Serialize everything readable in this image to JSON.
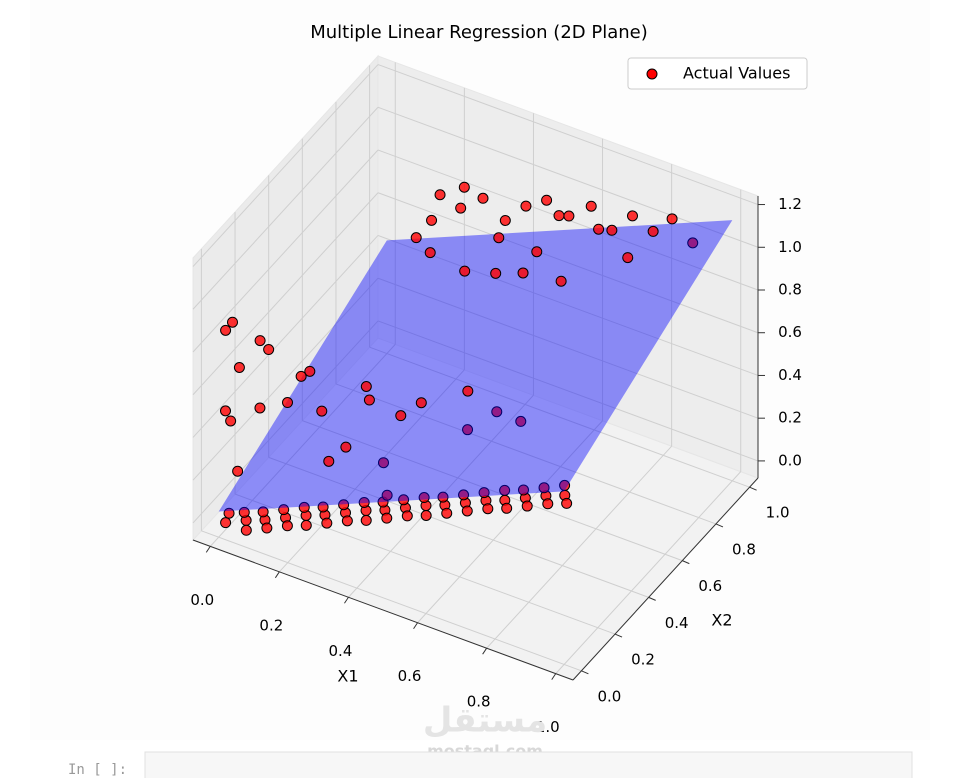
{
  "chart_data": {
    "type": "scatter3d",
    "title": "Multiple Linear Regression (2D Plane)",
    "xlabel": "X1",
    "ylabel": "X2",
    "xlim": [
      -0.05,
      1.05
    ],
    "ylim": [
      -0.05,
      1.05
    ],
    "zlim": [
      -0.08,
      1.24
    ],
    "xticks": [
      {
        "value": 0,
        "label": "0.0"
      },
      {
        "value": 0.2,
        "label": "0.2"
      },
      {
        "value": 0.4,
        "label": "0.4"
      },
      {
        "value": 0.6,
        "label": "0.6"
      },
      {
        "value": 0.8,
        "label": "0.8"
      },
      {
        "value": 1,
        "label": "1.0"
      }
    ],
    "yticks": [
      {
        "value": 0,
        "label": "0.0"
      },
      {
        "value": 0.2,
        "label": "0.2"
      },
      {
        "value": 0.4,
        "label": "0.4"
      },
      {
        "value": 0.6,
        "label": "0.6"
      },
      {
        "value": 0.8,
        "label": "0.8"
      },
      {
        "value": 1,
        "label": "1.0"
      }
    ],
    "zticks": [
      {
        "value": 0,
        "label": "0.0"
      },
      {
        "value": 0.2,
        "label": "0.2"
      },
      {
        "value": 0.4,
        "label": "0.4"
      },
      {
        "value": 0.6,
        "label": "0.6"
      },
      {
        "value": 0.8,
        "label": "0.8"
      },
      {
        "value": 1,
        "label": "1.0"
      },
      {
        "value": 1.2,
        "label": "1.2"
      }
    ],
    "grid": true,
    "legend": "upper right",
    "plane": {
      "intercept": 0.04,
      "coefficients": [
        0.69,
        0.41
      ],
      "color": "#0000ff"
    },
    "series": [
      {
        "name": "Actual Values",
        "color": "#ff0000",
        "x1": [
          0.02,
          0.06,
          0.1,
          0.14,
          0.18,
          0.22,
          0.26,
          0.3,
          0.34,
          0.38,
          0.42,
          0.46,
          0.5,
          0.54,
          0.58,
          0.62,
          0.66,
          0.7,
          0.04,
          0.08,
          0.12,
          0.16,
          0.2,
          0.24,
          0.28,
          0.32,
          0.36,
          0.4,
          0.44,
          0.48,
          0.52,
          0.56,
          0.6,
          0.64,
          0.68,
          0.08,
          0.12,
          0.16,
          0.2,
          0.24,
          0.28,
          0.32,
          0.36,
          0.4,
          0.44,
          0.48,
          0.52,
          0.56,
          0.6,
          0.64,
          0.68,
          0.72,
          0.04,
          0.02,
          0.115,
          0.13,
          0.06,
          0.01,
          0.02,
          0.1,
          0.19,
          0.22,
          0.17,
          0.24,
          0.27,
          0.3,
          0.37,
          0.42,
          0.58,
          0.67,
          0.55,
          0.46,
          0.33,
          0.3,
          0.62,
          0.4,
          0.05,
          0.03,
          0.29,
          0.3,
          0.27,
          0.35,
          0.4,
          0.45,
          0.5,
          0.55,
          0.6,
          0.65,
          0.7,
          0.75,
          0.8,
          0.85,
          0.9,
          0.67,
          0.5,
          0.42,
          0.33,
          0.58,
          0.72,
          0.62,
          0.38,
          0.55,
          0.78,
          0.47
        ],
        "x2": [
          0.0,
          0.04,
          0.07,
          0.11,
          0.15,
          0.18,
          0.22,
          0.26,
          0.29,
          0.33,
          0.37,
          0.4,
          0.44,
          0.48,
          0.51,
          0.55,
          0.59,
          0.62,
          0.07,
          0.1,
          0.14,
          0.18,
          0.21,
          0.25,
          0.29,
          0.32,
          0.36,
          0.4,
          0.43,
          0.47,
          0.51,
          0.55,
          0.58,
          0.62,
          0.66,
          0.0,
          0.04,
          0.08,
          0.11,
          0.15,
          0.19,
          0.22,
          0.26,
          0.3,
          0.33,
          0.37,
          0.41,
          0.45,
          0.48,
          0.52,
          0.56,
          0.59,
          0.0,
          0.0,
          0.01,
          0.03,
          0.0,
          0.02,
          0.03,
          0.04,
          0.1,
          0.09,
          0.06,
          0.12,
          0.1,
          0.14,
          0.22,
          0.22,
          0.29,
          0.42,
          0.35,
          0.26,
          0.2,
          0.28,
          0.38,
          0.18,
          0.01,
          0.0,
          0.67,
          0.7,
          0.62,
          0.72,
          0.75,
          0.78,
          0.8,
          0.82,
          0.85,
          0.88,
          0.9,
          0.92,
          0.94,
          0.95,
          0.97,
          0.66,
          0.62,
          0.6,
          0.58,
          0.7,
          0.78,
          0.75,
          0.68,
          0.68,
          0.83,
          0.7
        ],
        "z": [
          0,
          0,
          0,
          0,
          0,
          0,
          0,
          0,
          0,
          0,
          0,
          0,
          0,
          0,
          0,
          0,
          0,
          0,
          0,
          0,
          0,
          0,
          0,
          0,
          0,
          0,
          0,
          0,
          0,
          0,
          0,
          0,
          0,
          0,
          0,
          0,
          0,
          0,
          0,
          0,
          0,
          0,
          0,
          0,
          0,
          0,
          0,
          0,
          0,
          0,
          0,
          0,
          0.95,
          0.9,
          0.9,
          0.85,
          0.75,
          0.5,
          0.45,
          0.55,
          0.7,
          0.75,
          0.6,
          0.55,
          0.35,
          0.4,
          0.3,
          0.55,
          0.7,
          0.5,
          0.45,
          0.6,
          0.65,
          0.5,
          0.55,
          0.2,
          0.25,
          0.05,
          1.0,
          1.1,
          0.95,
          1.05,
          1.1,
          1.0,
          1.08,
          1.12,
          1.05,
          1.1,
          1.0,
          1.08,
          1.02,
          1.1,
          1.0,
          0.95,
          0.92,
          0.9,
          0.95,
          1.0,
          1.12,
          1.15,
          1.2,
          0.9,
          0.98,
          1.0
        ]
      }
    ]
  },
  "notebook": {
    "prompt": "In [ ]:"
  },
  "watermark": {
    "logo": "مستقل",
    "site": "mostaql.com"
  }
}
